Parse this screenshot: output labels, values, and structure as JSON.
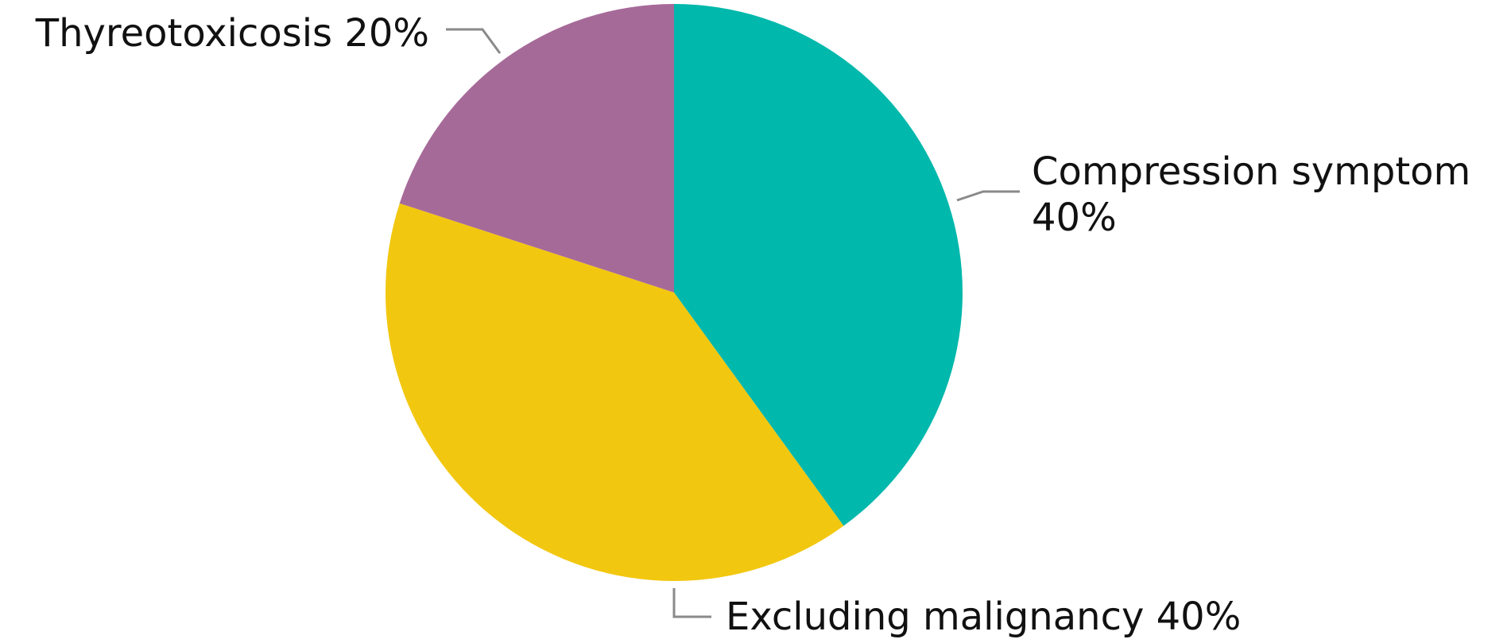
{
  "chart_data": {
    "type": "pie",
    "title": "",
    "slices": [
      {
        "label": "Compression symptom",
        "value": 40,
        "value_label": "40%",
        "color": "#00b8ac"
      },
      {
        "label": "Excluding malignancy",
        "value": 40,
        "value_label": "40%",
        "color": "#f2c710"
      },
      {
        "label": "Thyreotoxicosis",
        "value": 20,
        "value_label": "20%",
        "color": "#a66a99"
      }
    ],
    "start_angle": "12 o'clock",
    "direction": "clockwise",
    "leader_line_color": "#8a8a8a",
    "legend": "none"
  }
}
